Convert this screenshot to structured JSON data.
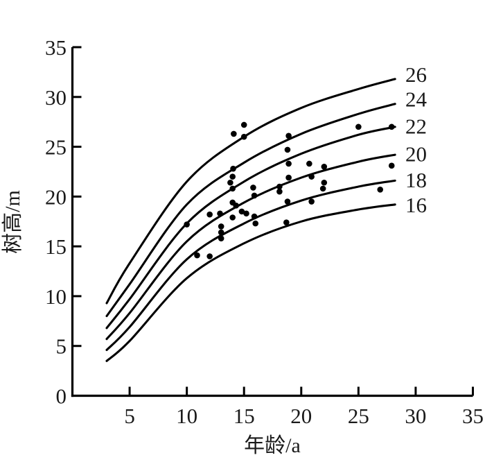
{
  "chart_data": {
    "type": "line",
    "title": "",
    "xlabel": "年龄/a",
    "ylabel": "树高/m",
    "xlim": [
      0,
      35
    ],
    "ylim": [
      0,
      35
    ],
    "xticks": [
      5,
      10,
      15,
      20,
      25,
      30,
      35
    ],
    "yticks": [
      0,
      5,
      10,
      15,
      20,
      25,
      30,
      35
    ],
    "grid": false,
    "legend_position": "right-of-curves",
    "line_color": "#000000",
    "point_color": "#000000",
    "background": "#ffffff",
    "curves_t": [
      3,
      5,
      10,
      15,
      20,
      25,
      28.2
    ],
    "curves": [
      {
        "label": "26",
        "label_h": 32.3,
        "heights": [
          9.3,
          13.3,
          21.5,
          26.0,
          28.9,
          30.8,
          31.8
        ]
      },
      {
        "label": "24",
        "label_h": 29.8,
        "heights": [
          8.0,
          11.2,
          19.2,
          23.4,
          26.3,
          28.3,
          29.3
        ]
      },
      {
        "label": "22",
        "label_h": 27.1,
        "heights": [
          6.8,
          9.7,
          17.3,
          21.5,
          24.3,
          26.2,
          27.0
        ]
      },
      {
        "label": "20",
        "label_h": 24.3,
        "heights": [
          5.7,
          8.3,
          15.5,
          19.4,
          21.9,
          23.5,
          24.2
        ]
      },
      {
        "label": "18",
        "label_h": 21.7,
        "heights": [
          4.6,
          6.9,
          13.7,
          17.3,
          19.6,
          21.0,
          21.6
        ]
      },
      {
        "label": "16",
        "label_h": 19.2,
        "heights": [
          3.5,
          5.5,
          11.8,
          15.3,
          17.5,
          18.7,
          19.2
        ]
      }
    ],
    "scatter": [
      [
        10.0,
        17.2
      ],
      [
        12.0,
        18.2
      ],
      [
        12.9,
        18.3
      ],
      [
        10.9,
        14.1
      ],
      [
        12.0,
        14.0
      ],
      [
        13.0,
        17.0
      ],
      [
        13.0,
        16.4
      ],
      [
        13.0,
        15.8
      ],
      [
        14.05,
        22.8
      ],
      [
        14.0,
        22.0
      ],
      [
        13.8,
        21.4
      ],
      [
        14.0,
        20.8
      ],
      [
        14.1,
        26.3
      ],
      [
        15.0,
        27.2
      ],
      [
        15.0,
        26.0
      ],
      [
        14.0,
        19.4
      ],
      [
        14.3,
        19.1
      ],
      [
        14.0,
        17.9
      ],
      [
        14.8,
        18.5
      ],
      [
        15.2,
        18.3
      ],
      [
        15.8,
        20.9
      ],
      [
        15.9,
        20.1
      ],
      [
        15.9,
        18.0
      ],
      [
        16.0,
        17.3
      ],
      [
        18.9,
        26.1
      ],
      [
        18.8,
        24.7
      ],
      [
        18.9,
        23.3
      ],
      [
        18.9,
        21.9
      ],
      [
        18.1,
        21.0
      ],
      [
        18.1,
        20.5
      ],
      [
        18.8,
        19.5
      ],
      [
        18.7,
        17.4
      ],
      [
        20.7,
        23.3
      ],
      [
        20.9,
        22.0
      ],
      [
        20.9,
        19.5
      ],
      [
        22.0,
        23.0
      ],
      [
        22.0,
        21.4
      ],
      [
        21.9,
        20.8
      ],
      [
        25.0,
        27.0
      ],
      [
        27.9,
        27.0
      ],
      [
        27.9,
        23.1
      ],
      [
        26.9,
        20.7
      ]
    ]
  },
  "layout_note": ""
}
